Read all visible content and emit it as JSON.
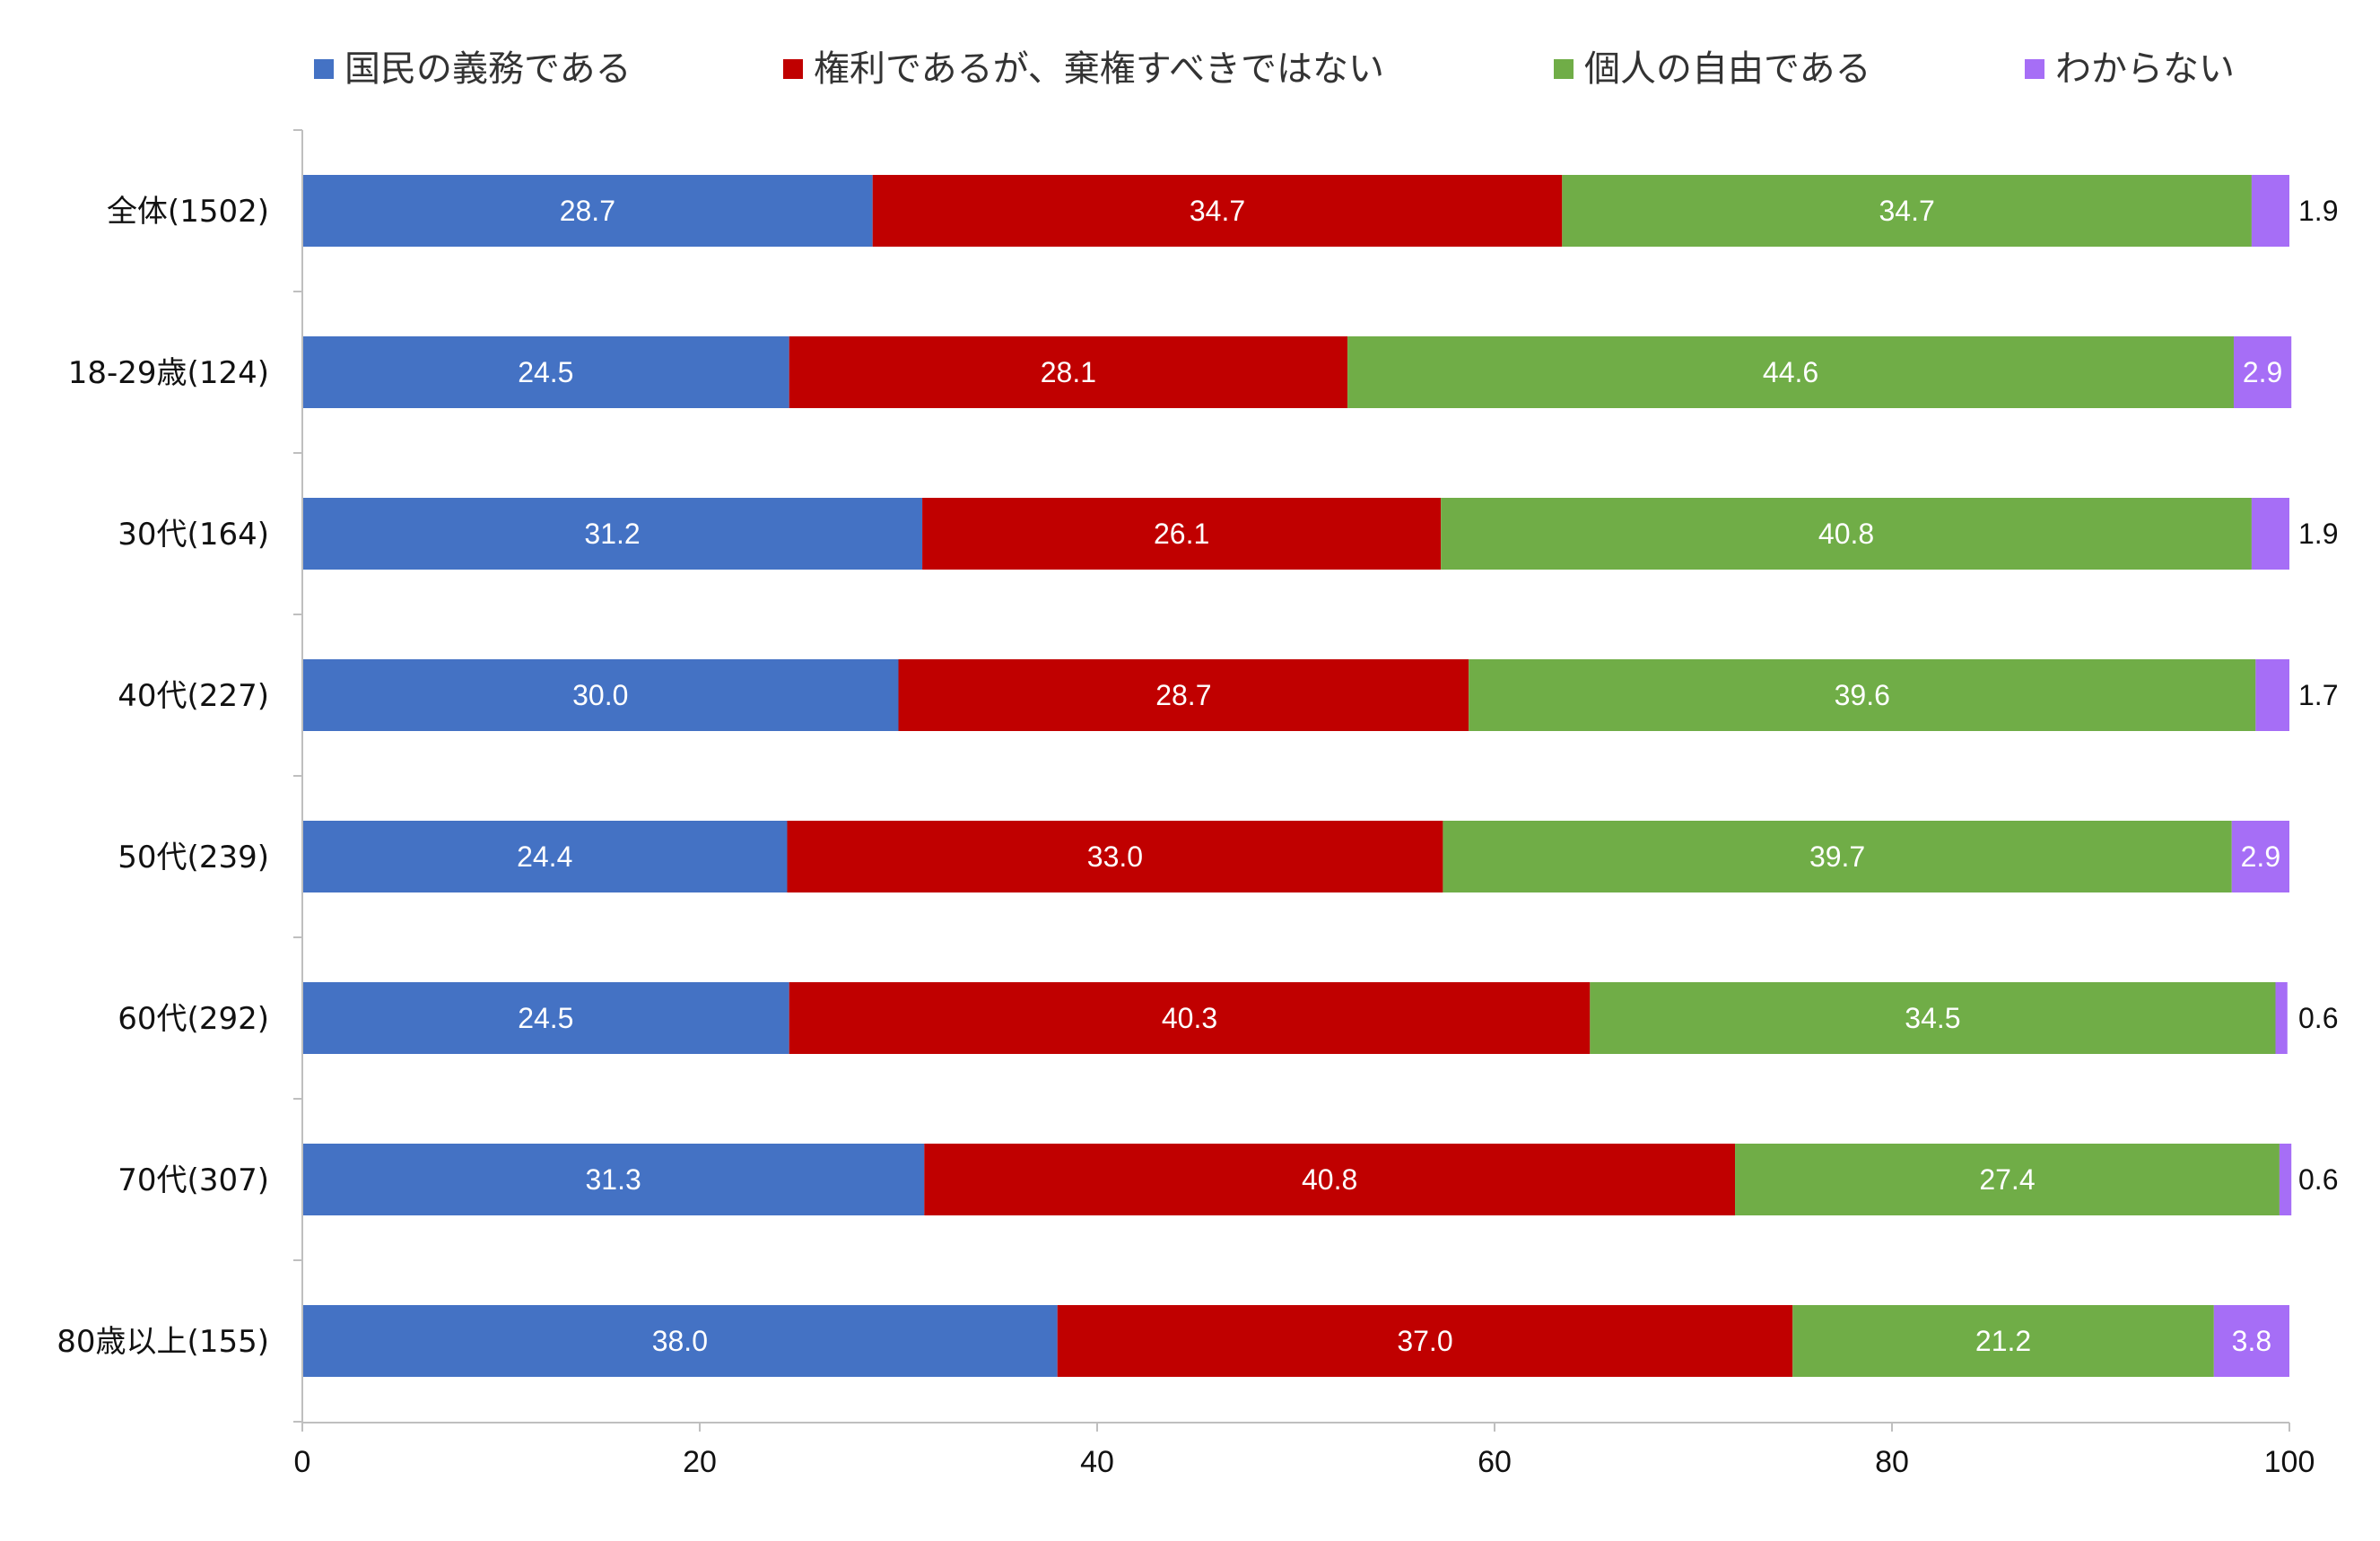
{
  "chart_data": {
    "type": "bar",
    "orientation": "horizontal",
    "stacked": true,
    "categories": [
      "全体(1502)",
      "18-29歳(124)",
      "30代(164)",
      "40代(227)",
      "50代(239)",
      "60代(292)",
      "70代(307)",
      "80歳以上(155)"
    ],
    "series": [
      {
        "name": "国民の義務である",
        "color": "#4472c4",
        "values": [
          28.7,
          24.5,
          31.2,
          30.0,
          24.4,
          24.5,
          31.3,
          38.0
        ]
      },
      {
        "name": "権利であるが、棄権すべきではない",
        "color": "#c00000",
        "values": [
          34.7,
          28.1,
          26.1,
          28.7,
          33.0,
          40.3,
          40.8,
          37.0
        ]
      },
      {
        "name": "個人の自由である",
        "color": "#70ad47",
        "values": [
          34.7,
          44.6,
          40.8,
          39.6,
          39.7,
          34.5,
          27.4,
          21.2
        ]
      },
      {
        "name": "わからない",
        "color": "#a66ef6",
        "values": [
          1.9,
          2.9,
          1.9,
          1.7,
          2.9,
          0.6,
          0.6,
          3.8
        ]
      }
    ],
    "value_labels": [
      [
        "28.7",
        "24.5",
        "31.2",
        "30.0",
        "24.4",
        "24.5",
        "31.3",
        "38.0"
      ],
      [
        "34.7",
        "28.1",
        "26.1",
        "28.7",
        "33.0",
        "40.3",
        "40.8",
        "37.0"
      ],
      [
        "34.7",
        "44.6",
        "40.8",
        "39.6",
        "39.7",
        "34.5",
        "27.4",
        "21.2"
      ],
      [
        "1.9",
        "2.9",
        "1.9",
        "1.7",
        "2.9",
        "0.6",
        "0.6",
        "3.8"
      ]
    ],
    "outside_label_rows": [
      0,
      2,
      3,
      5,
      6
    ],
    "xlim": [
      0,
      100
    ],
    "xticks": [
      0,
      20,
      40,
      60,
      80,
      100
    ],
    "xtick_labels": [
      "0",
      "20",
      "40",
      "60",
      "80",
      "100"
    ],
    "title": "",
    "xlabel": "",
    "ylabel": "",
    "legend_position": "top",
    "grid": false
  }
}
